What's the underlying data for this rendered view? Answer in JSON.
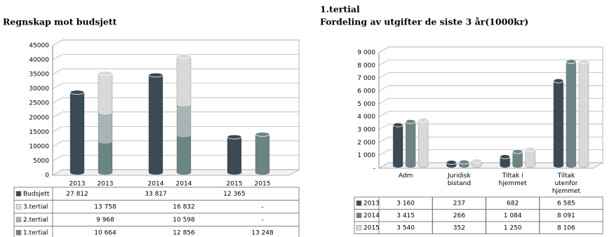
{
  "chart_data": [
    {
      "type": "bar",
      "stacked": true,
      "title": "Regnskap mot budsjett",
      "categories": [
        "2013",
        "2013",
        "2014",
        "2014",
        "2015",
        "2015"
      ],
      "series": [
        {
          "name": "Budsjett",
          "color": "#3b4a55",
          "values": [
            27812,
            null,
            33817,
            null,
            12365,
            null
          ],
          "value_labels": [
            "27 812",
            null,
            "33 817",
            null,
            "12 365",
            null
          ]
        },
        {
          "name": "3.tertial",
          "color": "#d9d9d9",
          "values": [
            null,
            13758,
            null,
            16832,
            null,
            null
          ],
          "value_labels": [
            null,
            "13 758",
            null,
            "16 832",
            null,
            "-"
          ]
        },
        {
          "name": "2.tertial",
          "color": "#a9b5b4",
          "values": [
            null,
            9968,
            null,
            10598,
            null,
            null
          ],
          "value_labels": [
            null,
            "9 968",
            null,
            "10 598",
            null,
            "-"
          ]
        },
        {
          "name": "1.tertial",
          "color": "#6c8584",
          "values": [
            null,
            10664,
            null,
            12856,
            null,
            13248
          ],
          "value_labels": [
            null,
            "10 664",
            null,
            "12 856",
            null,
            "13 248"
          ]
        }
      ],
      "ylim": [
        0,
        45000
      ],
      "yticks": [
        0,
        5000,
        10000,
        15000,
        20000,
        25000,
        30000,
        35000,
        40000,
        45000
      ],
      "grid": true
    },
    {
      "type": "bar",
      "title": "1.tertial",
      "subtitle": "Fordeling av utgifter de siste 3 år(1000kr)",
      "categories": [
        "Adm",
        "Juridisk bistand",
        "Tiltak i hjemmet",
        "Tiltak utenfor hjemmet"
      ],
      "series": [
        {
          "name": "2013",
          "color": "#3b4a55",
          "values": [
            3160,
            237,
            682,
            6585
          ],
          "value_labels": [
            "3 160",
            "237",
            "682",
            "6 585"
          ]
        },
        {
          "name": "2014",
          "color": "#6c8584",
          "values": [
            3415,
            266,
            1084,
            8091
          ],
          "value_labels": [
            "3 415",
            "266",
            "1 084",
            "8 091"
          ]
        },
        {
          "name": "2015",
          "color": "#d9d9d9",
          "values": [
            3540,
            352,
            1250,
            8106
          ],
          "value_labels": [
            "3 540",
            "352",
            "1 250",
            "8 106"
          ]
        }
      ],
      "ylim": [
        0,
        9000
      ],
      "yticks": [
        {
          "value": 0,
          "label": "-"
        },
        {
          "value": 1000,
          "label": "1 000"
        },
        {
          "value": 2000,
          "label": "2 000"
        },
        {
          "value": 3000,
          "label": "3 000"
        },
        {
          "value": 4000,
          "label": "4 000"
        },
        {
          "value": 5000,
          "label": "5 000"
        },
        {
          "value": 6000,
          "label": "6 000"
        },
        {
          "value": 7000,
          "label": "7 000"
        },
        {
          "value": 8000,
          "label": "8 000"
        },
        {
          "value": 9000,
          "label": "9 000"
        }
      ],
      "grid": true
    }
  ]
}
